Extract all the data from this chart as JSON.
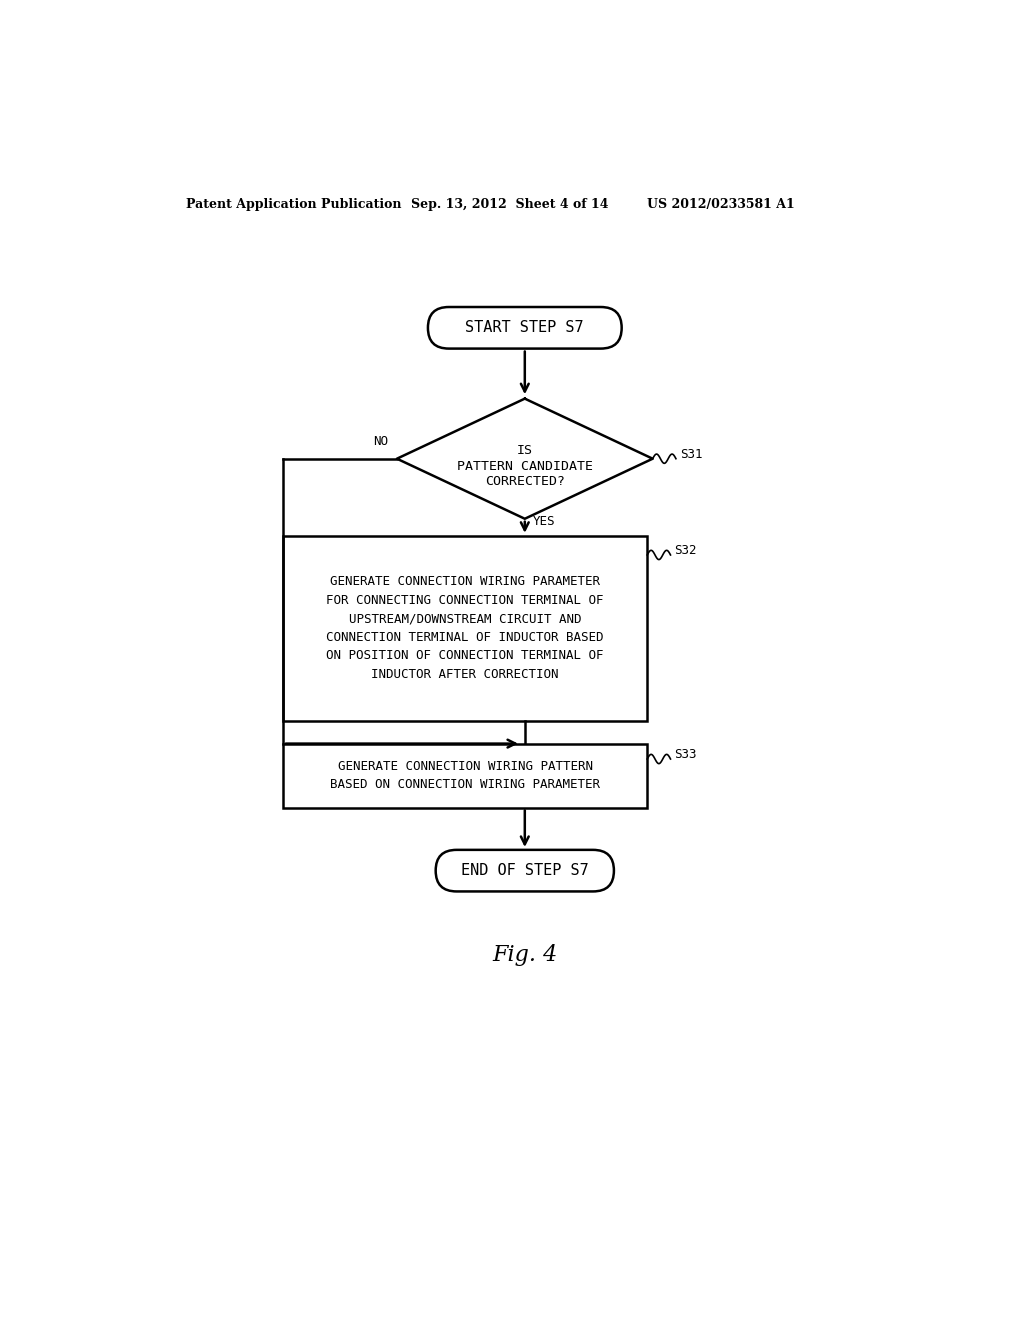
{
  "bg_color": "#ffffff",
  "text_color": "#000000",
  "header_left": "Patent Application Publication",
  "header_mid": "Sep. 13, 2012  Sheet 4 of 14",
  "header_right": "US 2012/0233581 A1",
  "fig_label": "Fig. 4",
  "start_text": "START STEP S7",
  "decision_line1": "IS",
  "decision_line2": "PATTERN CANDIDATE",
  "decision_line3": "CORRECTED?",
  "decision_label": "S31",
  "decision_no": "NO",
  "decision_yes": "YES",
  "box1_text": "GENERATE CONNECTION WIRING PARAMETER\nFOR CONNECTING CONNECTION TERMINAL OF\nUPSTREAM/DOWNSTREAM CIRCUIT AND\nCONNECTION TERMINAL OF INDUCTOR BASED\nON POSITION OF CONNECTION TERMINAL OF\nINDUCTOR AFTER CORRECTION",
  "box1_label": "S32",
  "box2_text": "GENERATE CONNECTION WIRING PATTERN\nBASED ON CONNECTION WIRING PARAMETER",
  "box2_label": "S33",
  "end_text": "END OF STEP S7",
  "lw": 1.8,
  "font_size_mono": 9.5,
  "font_size_header": 9,
  "font_size_fig": 16,
  "font_size_terminal": 11
}
